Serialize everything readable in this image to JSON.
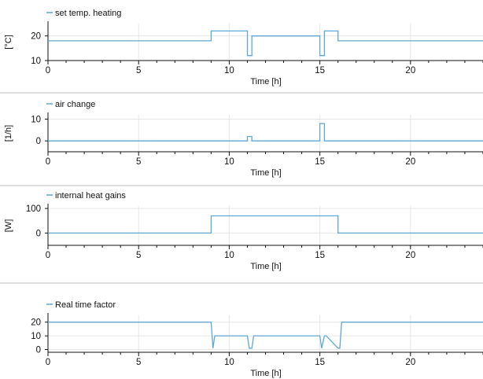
{
  "chart_data": [
    {
      "type": "line",
      "legend": "set temp. heating",
      "ylabel": "[°C]",
      "xlabel": "Time [h]",
      "xlim": [
        0,
        24
      ],
      "ylim": [
        10,
        25
      ],
      "yticks": [
        10,
        20
      ],
      "xticks": [
        0,
        5,
        10,
        15,
        20
      ],
      "series": [
        {
          "name": "set temp. heating",
          "x": [
            0,
            9,
            9,
            11,
            11,
            11.25,
            11.25,
            15,
            15,
            15.25,
            15.25,
            16,
            16,
            24
          ],
          "y": [
            18,
            18,
            22,
            22,
            12,
            12,
            20,
            20,
            12,
            12,
            22,
            22,
            18,
            18
          ]
        }
      ]
    },
    {
      "type": "line",
      "legend": "air change",
      "ylabel": "[1/h]",
      "xlabel": "Time [h]",
      "xlim": [
        0,
        24
      ],
      "ylim": [
        -5,
        12
      ],
      "yticks": [
        0,
        10
      ],
      "xticks": [
        0,
        5,
        10,
        15,
        20
      ],
      "series": [
        {
          "name": "air change",
          "x": [
            0,
            11,
            11,
            11.25,
            11.25,
            15,
            15,
            15.25,
            15.25,
            24
          ],
          "y": [
            0,
            0,
            2,
            2,
            0,
            0,
            8,
            8,
            0,
            0
          ]
        }
      ]
    },
    {
      "type": "line",
      "legend": "internal heat gains",
      "ylabel": "[W]",
      "xlabel": "Time [h]",
      "xlim": [
        0,
        24
      ],
      "ylim": [
        -50,
        110
      ],
      "yticks": [
        0,
        100
      ],
      "xticks": [
        0,
        5,
        10,
        15,
        20
      ],
      "series": [
        {
          "name": "internal heat gains",
          "x": [
            0,
            9,
            9,
            16,
            16,
            24
          ],
          "y": [
            0,
            0,
            70,
            70,
            0,
            0
          ]
        }
      ]
    },
    {
      "type": "line",
      "legend": "Real time factor",
      "ylabel": "",
      "xlabel": "Time [h]",
      "xlim": [
        0,
        24
      ],
      "ylim": [
        -2,
        25
      ],
      "yticks": [
        0,
        10,
        20
      ],
      "xticks": [
        0,
        5,
        10,
        15,
        20
      ],
      "series": [
        {
          "name": "Real time factor",
          "x": [
            0,
            9,
            9.1,
            9.2,
            11,
            11.1,
            11.25,
            11.35,
            15,
            15.1,
            15.25,
            15.35,
            16,
            16.1,
            16.2,
            24
          ],
          "y": [
            20,
            20,
            1,
            10,
            10,
            1,
            1,
            10,
            10,
            1,
            10,
            10,
            1,
            1,
            20,
            20
          ]
        }
      ]
    }
  ],
  "colors": {
    "line": "#5fa8d3",
    "axis": "#111111",
    "grid": "#e6e6e6",
    "separator": "#bfbfbf"
  }
}
